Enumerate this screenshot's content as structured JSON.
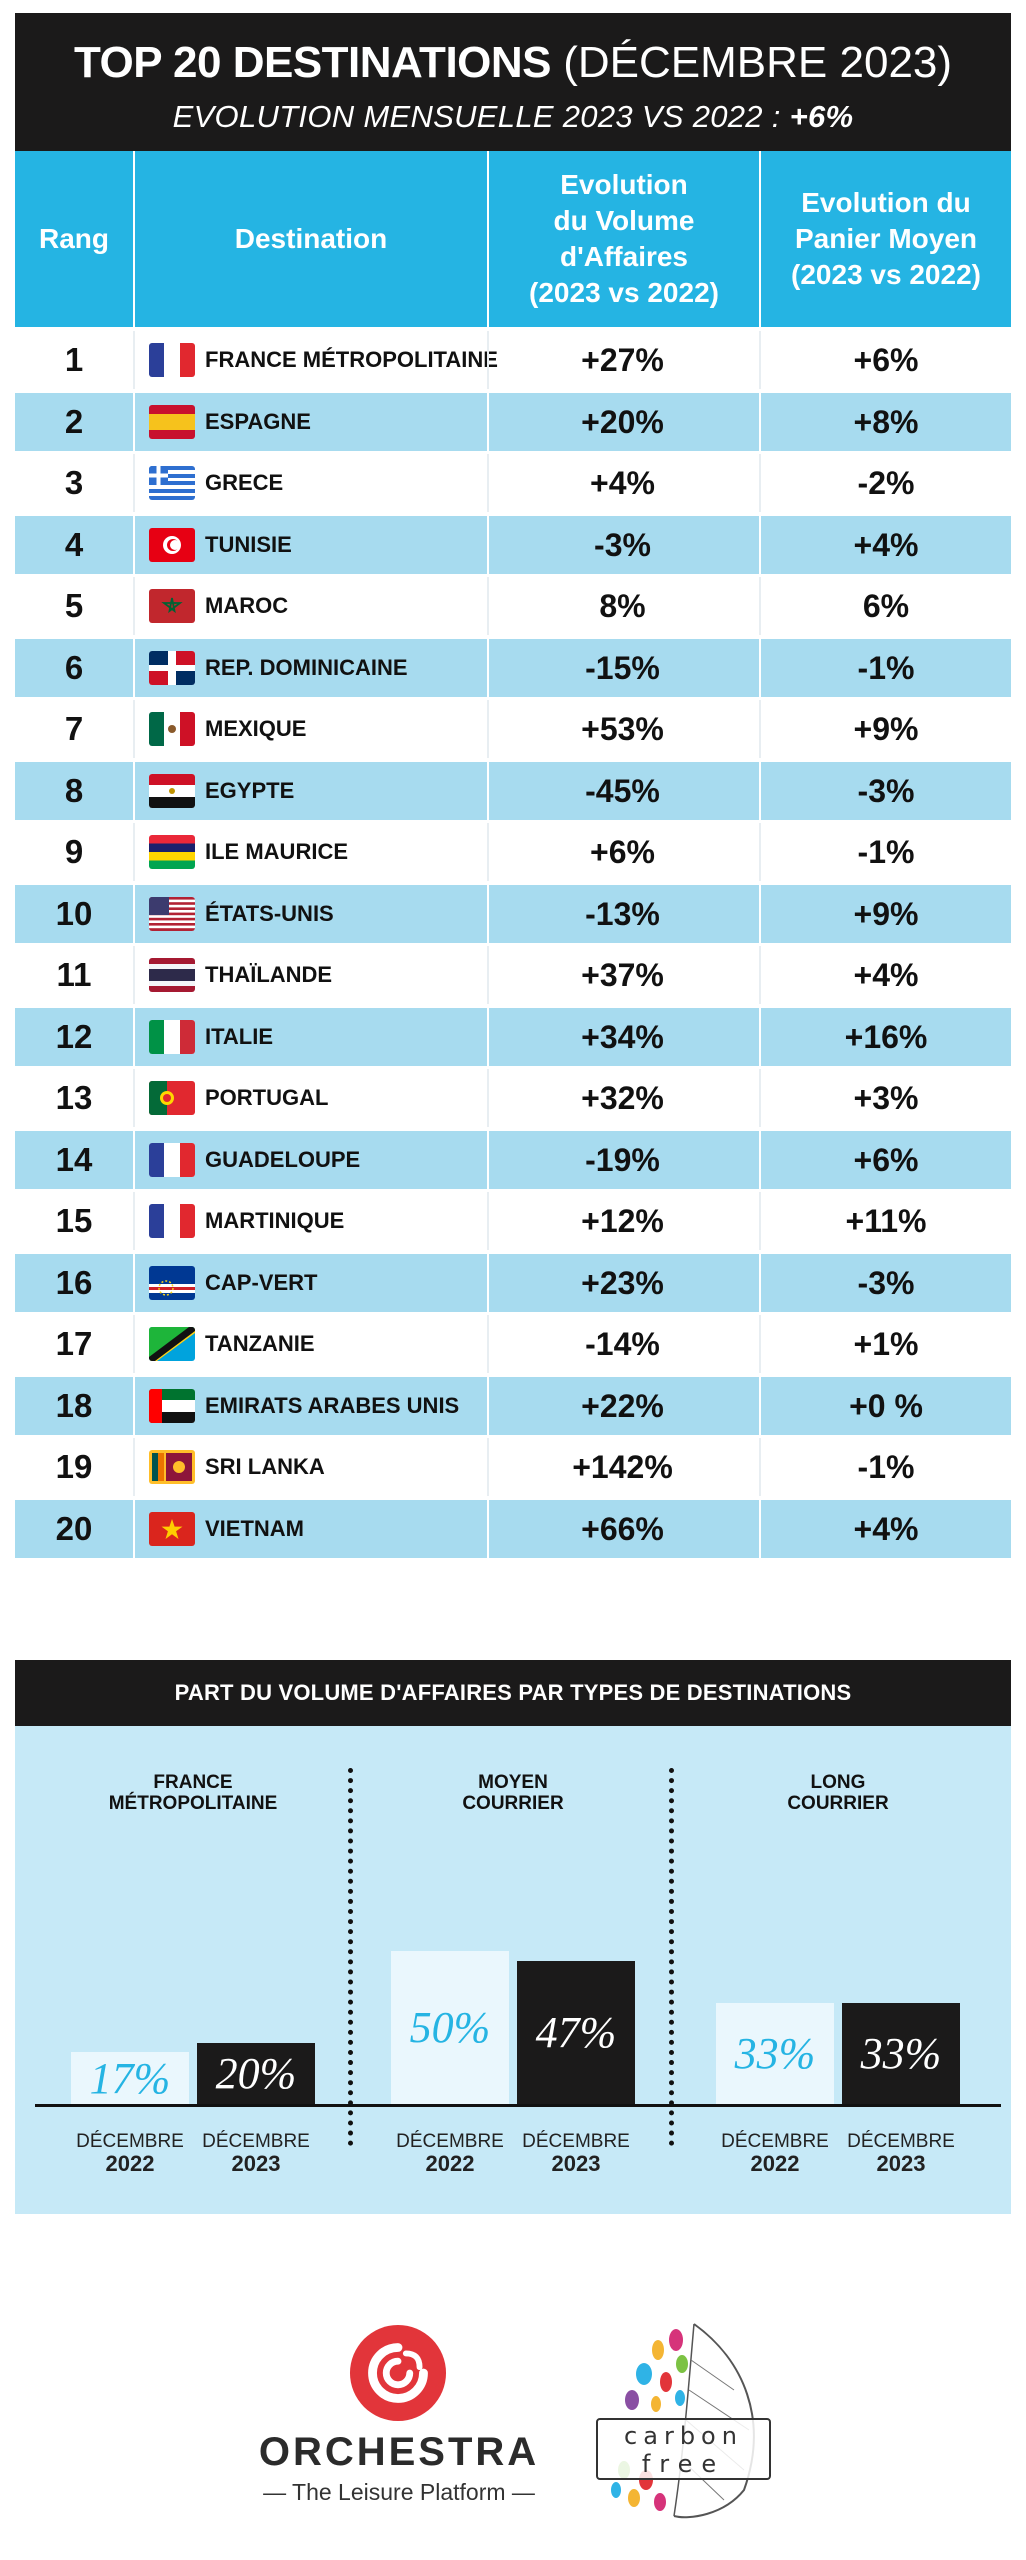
{
  "header": {
    "title_bold": "TOP 20 DESTINATIONS",
    "title_rest": "(DÉCEMBRE 2023)",
    "subtitle": "EVOLUTION MENSUELLE 2023 VS 2022 : ",
    "subtitle_value": "+6%"
  },
  "table": {
    "headers": {
      "rank": "Rang",
      "destination": "Destination",
      "volume": "Evolution\ndu Volume\nd'Affaires\n(2023 vs 2022)",
      "panier": "Evolution du\nPanier Moyen\n(2023 vs 2022)"
    },
    "rows": [
      {
        "rank": "1",
        "flag": "france-flag-icon",
        "destination": "FRANCE MÉTROPOLITAINE",
        "volume": "+27%",
        "panier": "+6%"
      },
      {
        "rank": "2",
        "flag": "spain-flag-icon",
        "destination": "ESPAGNE",
        "volume": "+20%",
        "panier": "+8%"
      },
      {
        "rank": "3",
        "flag": "greece-flag-icon",
        "destination": "GRECE",
        "volume": "+4%",
        "panier": "-2%"
      },
      {
        "rank": "4",
        "flag": "tunisia-flag-icon",
        "destination": "TUNISIE",
        "volume": "-3%",
        "panier": "+4%"
      },
      {
        "rank": "5",
        "flag": "morocco-flag-icon",
        "destination": "MAROC",
        "volume": "8%",
        "panier": "6%"
      },
      {
        "rank": "6",
        "flag": "dominican-republic-flag-icon",
        "destination": "REP. DOMINICAINE",
        "volume": "-15%",
        "panier": "-1%"
      },
      {
        "rank": "7",
        "flag": "mexico-flag-icon",
        "destination": "MEXIQUE",
        "volume": "+53%",
        "panier": "+9%"
      },
      {
        "rank": "8",
        "flag": "egypt-flag-icon",
        "destination": "EGYPTE",
        "volume": "-45%",
        "panier": "-3%"
      },
      {
        "rank": "9",
        "flag": "mauritius-flag-icon",
        "destination": "ILE MAURICE",
        "volume": "+6%",
        "panier": "-1%"
      },
      {
        "rank": "10",
        "flag": "usa-flag-icon",
        "destination": "ÉTATS-UNIS",
        "volume": "-13%",
        "panier": "+9%"
      },
      {
        "rank": "11",
        "flag": "thailand-flag-icon",
        "destination": "THAÏLANDE",
        "volume": "+37%",
        "panier": "+4%"
      },
      {
        "rank": "12",
        "flag": "italy-flag-icon",
        "destination": "ITALIE",
        "volume": "+34%",
        "panier": "+16%"
      },
      {
        "rank": "13",
        "flag": "portugal-flag-icon",
        "destination": "PORTUGAL",
        "volume": "+32%",
        "panier": "+3%"
      },
      {
        "rank": "14",
        "flag": "france-flag-icon",
        "destination": "GUADELOUPE",
        "volume": "-19%",
        "panier": "+6%"
      },
      {
        "rank": "15",
        "flag": "france-flag-icon",
        "destination": "MARTINIQUE",
        "volume": "+12%",
        "panier": "+11%"
      },
      {
        "rank": "16",
        "flag": "cape-verde-flag-icon",
        "destination": "CAP-VERT",
        "volume": "+23%",
        "panier": "-3%"
      },
      {
        "rank": "17",
        "flag": "tanzania-flag-icon",
        "destination": "TANZANIE",
        "volume": "-14%",
        "panier": "+1%"
      },
      {
        "rank": "18",
        "flag": "uae-flag-icon",
        "destination": "EMIRATS ARABES UNIS",
        "volume": "+22%",
        "panier": "+0 %"
      },
      {
        "rank": "19",
        "flag": "sri-lanka-flag-icon",
        "destination": "SRI LANKA",
        "volume": "+142%",
        "panier": "-1%"
      },
      {
        "rank": "20",
        "flag": "vietnam-flag-icon",
        "destination": "VIETNAM",
        "volume": "+66%",
        "panier": "+4%"
      }
    ]
  },
  "chart_data": {
    "type": "bar",
    "title": "PART DU VOLUME D'AFFAIRES PAR TYPES DE DESTINATIONS",
    "categories": [
      "FRANCE\nMÉTROPOLITAINE",
      "MOYEN\nCOURRIER",
      "LONG\nCOURRIER"
    ],
    "series": [
      {
        "name_line1": "DÉCEMBRE",
        "name_line2": "2022",
        "values": [
          17,
          50,
          33
        ],
        "labels": [
          "17%",
          "50%",
          "33%"
        ]
      },
      {
        "name_line1": "DÉCEMBRE",
        "name_line2": "2023",
        "values": [
          20,
          47,
          33
        ],
        "labels": [
          "20%",
          "47%",
          "33%"
        ]
      }
    ],
    "ylim": [
      0,
      100
    ],
    "colors": {
      "2022": "#eaf7fd",
      "2023": "#1b1a1a",
      "label_2022": "#25b4e3"
    }
  },
  "logos": {
    "orchestra_name": "ORCHESTRA",
    "orchestra_tagline": "— The Leisure Platform —",
    "carbon_line1": "carbon",
    "carbon_line2": "free"
  },
  "colors": {
    "header_bg": "#1b1a1a",
    "accent_blue": "#25b4e3",
    "row_alt": "#a7dbef",
    "chart_bg": "#c6e9f7",
    "orchestra_red": "#e2353a"
  }
}
